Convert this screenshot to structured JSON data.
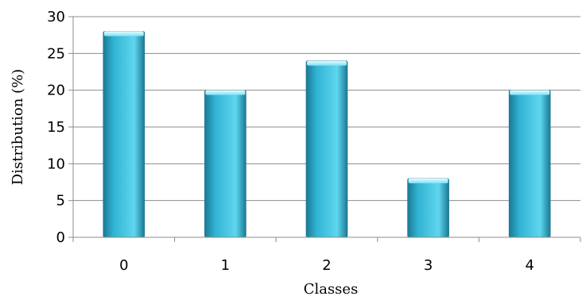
{
  "chart_data": {
    "type": "bar",
    "categories": [
      "0",
      "1",
      "2",
      "3",
      "4"
    ],
    "values": [
      28,
      20,
      24,
      8,
      20
    ],
    "xlabel": "Classes",
    "ylabel": "Distribution (%)",
    "ylim": [
      0,
      30
    ],
    "yticks": [
      "0",
      "5",
      "10",
      "15",
      "20",
      "25",
      "30"
    ],
    "grid": true,
    "legend": "none",
    "colors": {
      "bar_light": "#5fd6ee",
      "bar_mid": "#31b3d3",
      "bar_dark": "#197a95",
      "bar_edge": "#1b6f86",
      "gridline": "#8c8c8c",
      "axis": "#8c8c8c"
    }
  }
}
